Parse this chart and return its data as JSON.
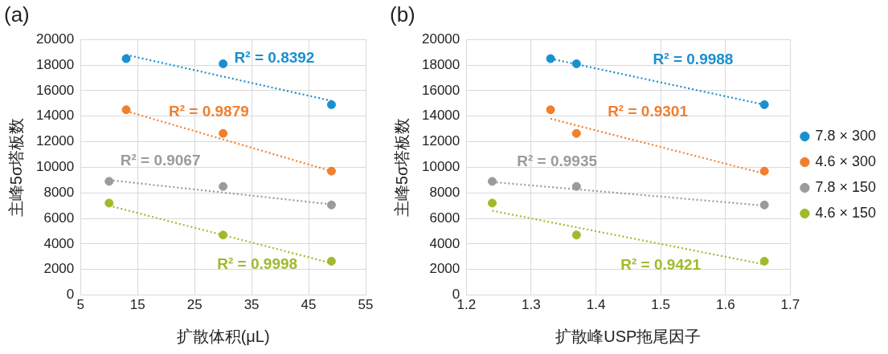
{
  "chart_data": [
    {
      "type": "scatter",
      "title": "(a)",
      "xlabel": "扩散体积(μL)",
      "ylabel": "主峰5σ塔板数",
      "xlim": [
        5,
        55
      ],
      "xticks": [
        5,
        15,
        25,
        35,
        45,
        55
      ],
      "ylim": [
        0,
        20000
      ],
      "yticks": [
        0,
        2000,
        4000,
        6000,
        8000,
        10000,
        12000,
        14000,
        16000,
        18000,
        20000
      ],
      "grid": true,
      "legend": false,
      "marker": "circle",
      "series": [
        {
          "color": "#1a8fd0",
          "x": [
            13,
            30,
            49
          ],
          "values": [
            18500,
            18100,
            14900
          ]
        },
        {
          "color": "#f07f2e",
          "x": [
            13,
            30,
            49
          ],
          "values": [
            14500,
            12650,
            9700
          ]
        },
        {
          "color": "#9b9b9b",
          "x": [
            10,
            30,
            49
          ],
          "values": [
            8900,
            8500,
            7050
          ]
        },
        {
          "color": "#9dbb2c",
          "x": [
            10,
            30,
            49
          ],
          "values": [
            7200,
            4700,
            2650
          ]
        },
        {
          "type": "line",
          "line_style": "dotted",
          "marker": "none",
          "color": "#1a8fd0",
          "x": [
            13,
            49
          ],
          "values": [
            18800,
            15200
          ]
        },
        {
          "type": "line",
          "line_style": "dotted",
          "marker": "none",
          "color": "#f07f2e",
          "x": [
            13,
            49
          ],
          "values": [
            14400,
            9700
          ]
        },
        {
          "type": "line",
          "line_style": "dotted",
          "marker": "none",
          "color": "#9b9b9b",
          "x": [
            10,
            49
          ],
          "values": [
            9000,
            7100
          ]
        },
        {
          "type": "line",
          "line_style": "dotted",
          "marker": "none",
          "color": "#9dbb2c",
          "x": [
            10,
            49
          ],
          "values": [
            7000,
            2500
          ]
        }
      ],
      "annotations": [
        "R² = 0.8392",
        "R² = 0.9879",
        "R² = 0.9067",
        "R² = 0.9998"
      ]
    },
    {
      "type": "scatter",
      "title": "(b)",
      "xlabel": "扩散峰USP拖尾因子",
      "ylabel": "主峰5σ塔板数",
      "xlim": [
        1.2,
        1.7
      ],
      "xticks": [
        1.2,
        1.3,
        1.4,
        1.5,
        1.6,
        1.7
      ],
      "ylim": [
        0,
        20000
      ],
      "yticks": [
        0,
        2000,
        4000,
        6000,
        8000,
        10000,
        12000,
        14000,
        16000,
        18000,
        20000
      ],
      "grid": true,
      "legend": "right",
      "marker": "circle",
      "series": [
        {
          "name": "7.8 × 300",
          "color": "#1a8fd0",
          "x": [
            1.33,
            1.37,
            1.66
          ],
          "values": [
            18500,
            18100,
            14900
          ]
        },
        {
          "name": "4.6 × 300",
          "color": "#f07f2e",
          "x": [
            1.33,
            1.37,
            1.66
          ],
          "values": [
            14500,
            12650,
            9700
          ]
        },
        {
          "name": "7.8 × 150",
          "color": "#9b9b9b",
          "x": [
            1.24,
            1.37,
            1.66
          ],
          "values": [
            8900,
            8500,
            7050
          ]
        },
        {
          "name": "4.6 × 150",
          "color": "#9dbb2c",
          "x": [
            1.24,
            1.37,
            1.66
          ],
          "values": [
            7200,
            4700,
            2650
          ]
        },
        {
          "type": "line",
          "line_style": "dotted",
          "marker": "none",
          "color": "#1a8fd0",
          "x": [
            1.33,
            1.66
          ],
          "values": [
            18500,
            14900
          ]
        },
        {
          "type": "line",
          "line_style": "dotted",
          "marker": "none",
          "color": "#f07f2e",
          "x": [
            1.33,
            1.66
          ],
          "values": [
            13800,
            9500
          ]
        },
        {
          "type": "line",
          "line_style": "dotted",
          "marker": "none",
          "color": "#9b9b9b",
          "x": [
            1.24,
            1.66
          ],
          "values": [
            8850,
            7000
          ]
        },
        {
          "type": "line",
          "line_style": "dotted",
          "marker": "none",
          "color": "#9dbb2c",
          "x": [
            1.24,
            1.66
          ],
          "values": [
            6600,
            2400
          ]
        }
      ],
      "annotations": [
        "R² = 0.9988",
        "R² = 0.9301",
        "R² = 0.9935",
        "R² = 0.9421"
      ]
    }
  ]
}
